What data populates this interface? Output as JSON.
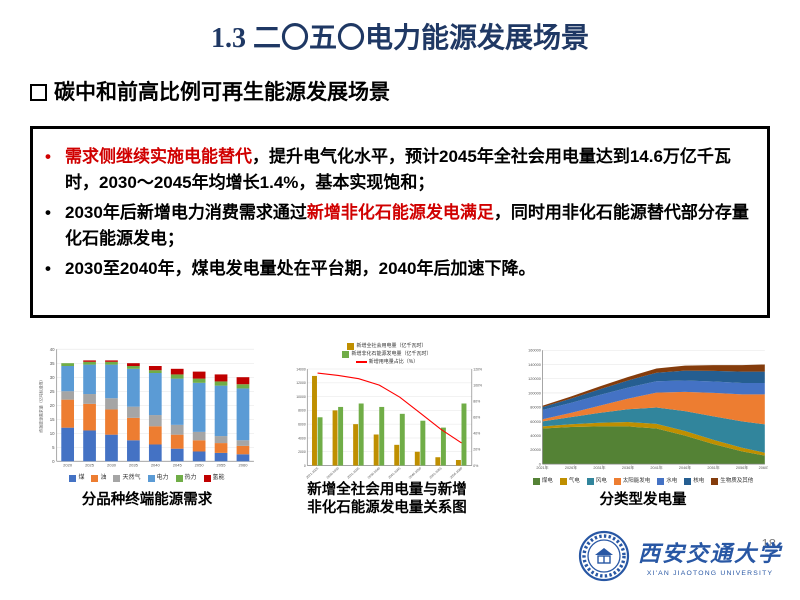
{
  "slide": {
    "title": "1.3 二〇五〇电力能源发展场景"
  },
  "heading": {
    "text": "碳中和前高比例可再生能源发展场景"
  },
  "callout_box": {
    "bullets": [
      {
        "marker": "•",
        "segments": [
          {
            "text": "需求侧继续实施电能替代",
            "emphasis": true
          },
          {
            "text": "，提升电气化水平，预计2045年全社会用电量达到14.6万亿千瓦时，2030～2045年均增长1.4%，基本实现饱和；",
            "emphasis": false
          }
        ]
      },
      {
        "marker": "•",
        "segments": [
          {
            "text": "2030年后新增电力消费需求通过",
            "emphasis": false
          },
          {
            "text": "新增非化石能源发电满足",
            "emphasis": true
          },
          {
            "text": "，同时用非化石能源替代部分存量化石能源发电；",
            "emphasis": false
          }
        ]
      },
      {
        "marker": "•",
        "segments": [
          {
            "text": "2030至2040年，煤电发电量处在平台期，2040年后加速下降。",
            "emphasis": false
          }
        ]
      }
    ]
  },
  "charts": {
    "captions": [
      {
        "lines": [
          "分品种终端能源需求"
        ]
      },
      {
        "lines": [
          "新增全社会用电量与新增",
          "非化石能源发电量关系图"
        ]
      },
      {
        "lines": [
          "分类型发电量"
        ]
      }
    ]
  },
  "chart_data": [
    {
      "id": "terminal-energy-demand-by-type",
      "type": "bar",
      "stacked": true,
      "title": "分品种终端能源需求",
      "ylabel": "终端能源需求量（亿吨标准煤）",
      "ylim": [
        0,
        40
      ],
      "ytick": 5,
      "grid": true,
      "legend_position": "bottom",
      "categories": [
        "2020",
        "2025",
        "2030",
        "2035",
        "2040",
        "2045",
        "2050",
        "2055",
        "2060"
      ],
      "series": [
        {
          "name": "煤",
          "color": "#4472C4",
          "values": [
            12,
            11,
            9.5,
            7.5,
            6,
            4.5,
            3.5,
            3,
            2.5
          ]
        },
        {
          "name": "油",
          "color": "#ED7D31",
          "values": [
            10,
            9.5,
            9,
            8,
            6.5,
            5,
            4,
            3.5,
            3
          ]
        },
        {
          "name": "天然气",
          "color": "#A5A5A5",
          "values": [
            3,
            3.5,
            4,
            4,
            4,
            3.5,
            3,
            2.5,
            2
          ]
        },
        {
          "name": "电力",
          "color": "#5B9BD5",
          "values": [
            9,
            10.5,
            12,
            13.5,
            15,
            16.5,
            17.5,
            18,
            18.5
          ]
        },
        {
          "name": "热力",
          "color": "#70AD47",
          "values": [
            1,
            1,
            1,
            1,
            1,
            1.5,
            1.5,
            1.5,
            1.5
          ]
        },
        {
          "name": "氢能",
          "color": "#C00000",
          "values": [
            0,
            0.5,
            0.5,
            1,
            1.5,
            2,
            2.5,
            2.5,
            2.5
          ]
        }
      ]
    },
    {
      "id": "new-consumption-vs-new-nonfossil-generation",
      "type": "bar-line",
      "title": "新增全社会用电量与新增非化石能源发电量关系图",
      "ylim": [
        0,
        14000
      ],
      "ytick": 2000,
      "y2lim": [
        0,
        120
      ],
      "y2tick": 20,
      "grid": true,
      "legend_position": "top",
      "categories": [
        "2021-2025",
        "2026-2030",
        "2031-2035",
        "2036-2040",
        "2041-2045",
        "2046-2050",
        "2051-2055",
        "2056-2060"
      ],
      "series": [
        {
          "name": "新增全社会用电量（亿千瓦时）",
          "color": "#BF8F00",
          "values": [
            13000,
            8000,
            6000,
            4500,
            3000,
            2000,
            1200,
            800
          ]
        },
        {
          "name": "新增非化石能源发电量（亿千瓦时）",
          "color": "#70AD47",
          "values": [
            7000,
            8500,
            9000,
            8500,
            7500,
            6500,
            5500,
            9000
          ]
        }
      ],
      "line": {
        "name": "新增用电量占比（%）",
        "color": "#FF0000",
        "axis": "right",
        "values": [
          115,
          112,
          108,
          100,
          85,
          65,
          45,
          28
        ]
      }
    },
    {
      "id": "generation-by-type",
      "type": "area",
      "stacked": true,
      "title": "分类型发电量",
      "ylabel": "发电量（亿千瓦时）",
      "ylim": [
        0,
        160000
      ],
      "ytick": 20000,
      "grid": true,
      "legend_position": "bottom",
      "x": [
        "2021年",
        "2026年",
        "2031年",
        "2036年",
        "2041年",
        "2046年",
        "2051年",
        "2056年",
        "2060年"
      ],
      "series": [
        {
          "name": "煤电",
          "color": "#548235",
          "values": [
            50000,
            52000,
            53000,
            53000,
            50000,
            40000,
            28000,
            18000,
            12000
          ]
        },
        {
          "name": "气电",
          "color": "#BF8F00",
          "values": [
            3000,
            4000,
            5000,
            6000,
            6500,
            6500,
            6000,
            5000,
            4000
          ]
        },
        {
          "name": "风电",
          "color": "#31859C",
          "values": [
            7000,
            10000,
            14000,
            18000,
            23000,
            28000,
            33000,
            37000,
            40000
          ]
        },
        {
          "name": "太阳能发电",
          "color": "#ED7D31",
          "values": [
            3000,
            6000,
            10000,
            15000,
            21000,
            27000,
            33000,
            38000,
            42000
          ]
        },
        {
          "name": "水电",
          "color": "#4472C4",
          "values": [
            13000,
            14000,
            15000,
            15500,
            16000,
            16000,
            16000,
            16000,
            16000
          ]
        },
        {
          "name": "核电",
          "color": "#255E91",
          "values": [
            4000,
            6000,
            8000,
            10000,
            12000,
            14000,
            15000,
            16000,
            16000
          ]
        },
        {
          "name": "生物质及其他",
          "color": "#843C0C",
          "values": [
            2000,
            3000,
            4000,
            5000,
            6000,
            7000,
            8000,
            9000,
            10000
          ]
        }
      ]
    }
  ],
  "footer": {
    "page_number": "18",
    "university_name_zh": "西安交通大学",
    "university_name_en": "XI'AN JIAOTONG UNIVERSITY"
  },
  "colors": {
    "title_navy": "#1F3864",
    "emphasis_red": "#D00000",
    "logo_blue": "#2857A4",
    "line_red": "#FF0000"
  }
}
